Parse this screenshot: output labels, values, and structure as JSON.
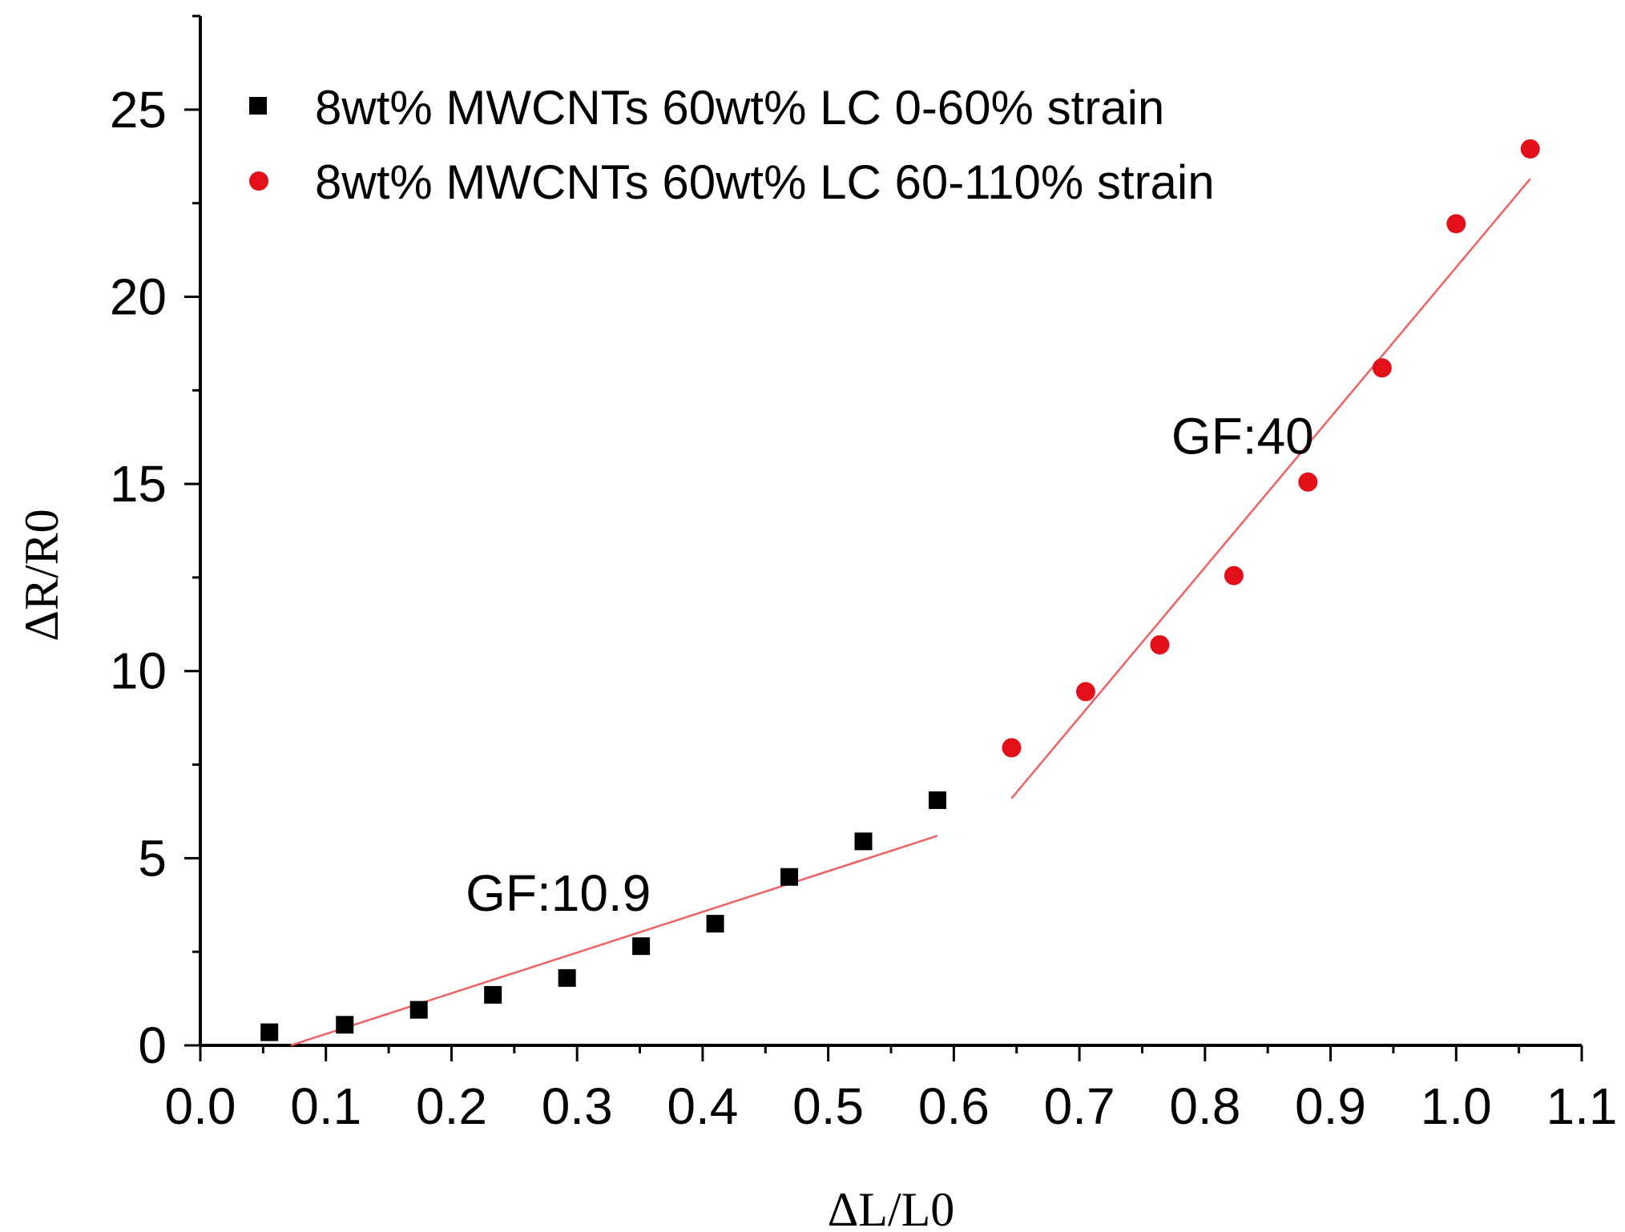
{
  "chart_data": {
    "type": "scatter",
    "title": "",
    "xlabel": "ΔL/L0",
    "ylabel": "ΔR/R0",
    "xlim": [
      0.0,
      1.1
    ],
    "ylim": [
      0,
      27.5
    ],
    "x_ticks": [
      0.0,
      0.1,
      0.2,
      0.3,
      0.4,
      0.5,
      0.6,
      0.7,
      0.8,
      0.9,
      1.0,
      1.1
    ],
    "x_tick_labels": [
      "0.0",
      "0.1",
      "0.2",
      "0.3",
      "0.4",
      "0.5",
      "0.6",
      "0.7",
      "0.8",
      "0.9",
      "1.0",
      "1.1"
    ],
    "y_ticks": [
      0,
      5,
      10,
      15,
      20,
      25
    ],
    "y_tick_labels": [
      "0",
      "5",
      "10",
      "15",
      "20",
      "25"
    ],
    "grid": false,
    "legend_position": "top-left",
    "series": [
      {
        "name": "8wt% MWCNTs 60wt% LC 0-60% strain",
        "marker": "square",
        "color": "#000000",
        "x": [
          0.055,
          0.115,
          0.174,
          0.233,
          0.292,
          0.351,
          0.41,
          0.469,
          0.528,
          0.587
        ],
        "y": [
          0.35,
          0.55,
          0.95,
          1.35,
          1.8,
          2.65,
          3.25,
          4.5,
          5.45,
          6.55
        ]
      },
      {
        "name": "8wt% MWCNTs 60wt% LC 60-110% strain",
        "marker": "circle",
        "color": "#e3101a",
        "x": [
          0.646,
          0.705,
          0.764,
          0.823,
          0.882,
          0.941,
          1.0,
          1.059
        ],
        "y": [
          7.95,
          9.45,
          10.7,
          12.55,
          15.05,
          18.1,
          21.95,
          23.95
        ]
      }
    ],
    "fit_lines": [
      {
        "name": "fit-0-60",
        "color": "#f06060",
        "x": [
          0.072,
          0.587
        ],
        "y": [
          0.0,
          5.6
        ]
      },
      {
        "name": "fit-60-110",
        "color": "#f06060",
        "x": [
          0.646,
          1.059
        ],
        "y": [
          6.6,
          23.15
        ]
      }
    ],
    "annotations": [
      {
        "text": "GF:10.9",
        "x": 0.285,
        "y": 3.6
      },
      {
        "text": "GF:40",
        "x": 0.83,
        "y": 15.8
      }
    ]
  }
}
